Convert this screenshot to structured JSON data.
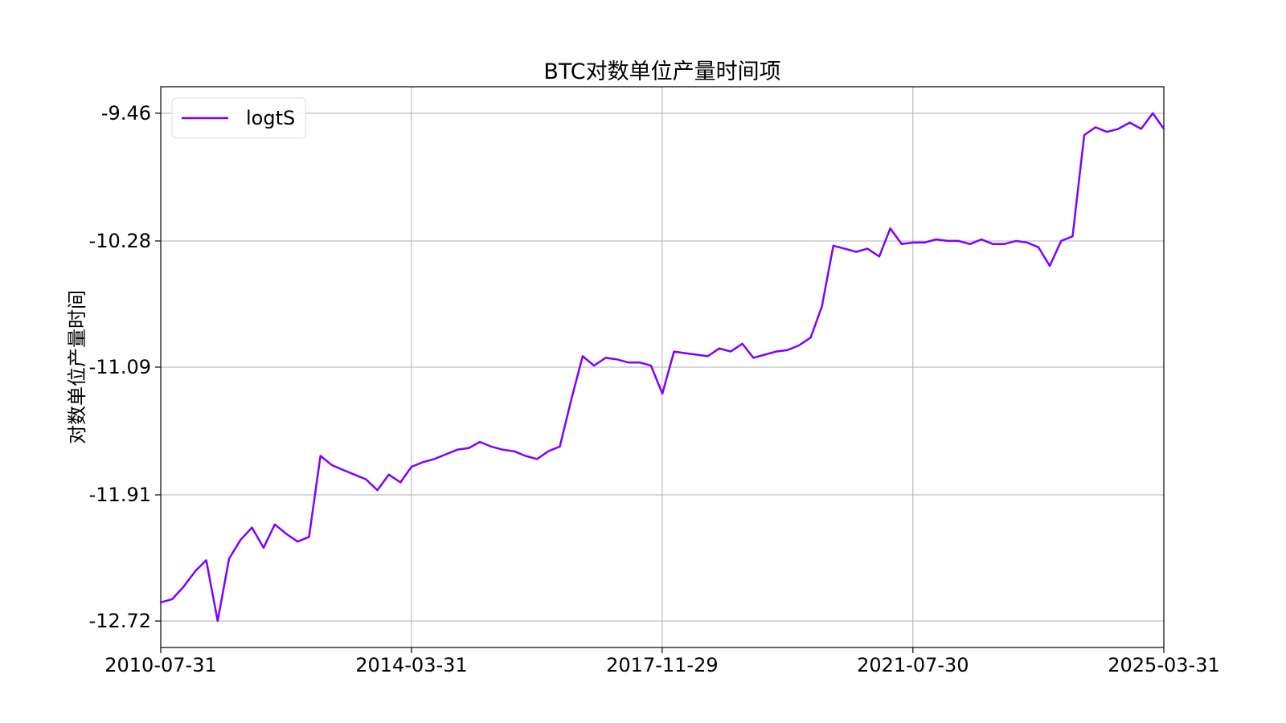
{
  "chart_data": {
    "type": "line",
    "title": "BTC对数单位产量时间项",
    "xlabel": "",
    "ylabel": "对数单位产量时间",
    "x_ticks": [
      "2010-07-31",
      "2014-03-31",
      "2017-11-29",
      "2021-07-30",
      "2025-03-31"
    ],
    "y_ticks": [
      -9.46,
      -10.28,
      -11.09,
      -11.91,
      -12.72
    ],
    "y_tick_labels": [
      "-9.46",
      "-10.28",
      "-11.09",
      "-11.91",
      "-12.72"
    ],
    "xlim": [
      "2010-07-31",
      "2025-03-31"
    ],
    "ylim": [
      -12.89,
      -9.29
    ],
    "grid": true,
    "legend_position": "top-left",
    "series": [
      {
        "name": "logtS",
        "color": "#7f00ff",
        "x": [
          "2010-07-31",
          "2010-09-30",
          "2010-11-30",
          "2011-01-31",
          "2011-03-31",
          "2011-05-31",
          "2011-07-31",
          "2011-09-30",
          "2011-11-30",
          "2012-01-31",
          "2012-03-31",
          "2012-05-31",
          "2012-07-31",
          "2012-09-30",
          "2012-11-30",
          "2013-01-31",
          "2013-03-31",
          "2013-05-31",
          "2013-07-31",
          "2013-09-30",
          "2013-11-30",
          "2014-01-31",
          "2014-03-31",
          "2014-05-31",
          "2014-07-31",
          "2014-09-30",
          "2014-11-30",
          "2015-01-31",
          "2015-03-31",
          "2015-05-31",
          "2015-07-31",
          "2015-09-30",
          "2015-11-30",
          "2016-01-31",
          "2016-03-31",
          "2016-05-31",
          "2016-07-31",
          "2016-09-30",
          "2016-11-30",
          "2017-01-31",
          "2017-03-31",
          "2017-05-31",
          "2017-07-31",
          "2017-09-30",
          "2017-11-30",
          "2018-01-31",
          "2018-03-31",
          "2018-05-31",
          "2018-07-31",
          "2018-09-30",
          "2018-11-30",
          "2019-01-31",
          "2019-03-31",
          "2019-05-31",
          "2019-07-31",
          "2019-09-30",
          "2019-11-30",
          "2020-01-31",
          "2020-03-31",
          "2020-05-31",
          "2020-07-31",
          "2020-09-30",
          "2020-11-30",
          "2021-01-31",
          "2021-03-31",
          "2021-05-31",
          "2021-07-31",
          "2021-09-30",
          "2021-11-30",
          "2022-01-31",
          "2022-03-31",
          "2022-05-31",
          "2022-07-31",
          "2022-09-30",
          "2022-11-30",
          "2023-01-31",
          "2023-03-31",
          "2023-05-31",
          "2023-07-31",
          "2023-09-30",
          "2023-11-30",
          "2024-01-31",
          "2024-03-31",
          "2024-05-31",
          "2024-07-31",
          "2024-09-30",
          "2024-11-30",
          "2025-01-31",
          "2025-03-31"
        ],
        "y": [
          -12.6,
          -12.58,
          -12.5,
          -12.4,
          -12.33,
          -12.72,
          -12.32,
          -12.2,
          -12.12,
          -12.25,
          -12.1,
          -12.16,
          -12.21,
          -12.18,
          -11.66,
          -11.72,
          -11.75,
          -11.78,
          -11.81,
          -11.88,
          -11.78,
          -11.83,
          -11.73,
          -11.7,
          -11.68,
          -11.65,
          -11.62,
          -11.61,
          -11.57,
          -11.6,
          -11.62,
          -11.63,
          -11.66,
          -11.68,
          -11.63,
          -11.6,
          -11.3,
          -11.02,
          -11.08,
          -11.03,
          -11.04,
          -11.06,
          -11.06,
          -11.08,
          -11.26,
          -10.99,
          -11.0,
          -11.01,
          -11.02,
          -10.97,
          -10.99,
          -10.94,
          -11.03,
          -11.01,
          -10.99,
          -10.98,
          -10.95,
          -10.9,
          -10.7,
          -10.31,
          -10.33,
          -10.35,
          -10.33,
          -10.38,
          -10.2,
          -10.3,
          -10.29,
          -10.29,
          -10.27,
          -10.28,
          -10.28,
          -10.3,
          -10.27,
          -10.3,
          -10.3,
          -10.28,
          -10.29,
          -10.32,
          -10.44,
          -10.28,
          -10.25,
          -9.6,
          -9.55,
          -9.58,
          -9.56,
          -9.52,
          -9.56,
          -9.46,
          -9.56
        ]
      }
    ]
  }
}
